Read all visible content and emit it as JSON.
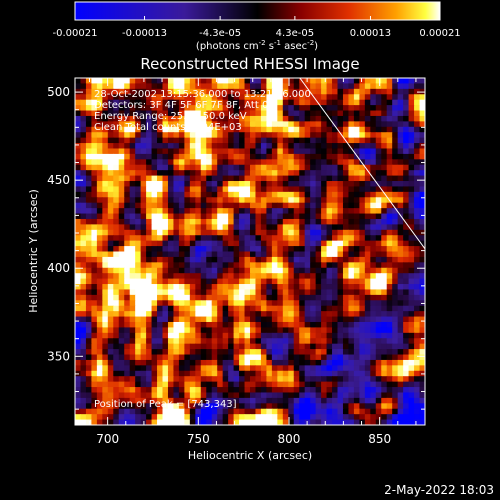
{
  "chart_data": {
    "type": "heatmap",
    "title": "Reconstructed RHESSI Image",
    "xlabel": "Heliocentric X (arcsec)",
    "ylabel": "Heliocentric Y (arcsec)",
    "xlim": [
      682,
      875
    ],
    "ylim": [
      311,
      508
    ],
    "xticks": [
      700,
      750,
      800,
      850
    ],
    "yticks": [
      350,
      400,
      450,
      500
    ],
    "colorbar": {
      "range": [
        -0.00021,
        0.00021
      ],
      "tick_labels": [
        "-0.00021",
        "-0.00013",
        "-4.3e-05",
        "4.3e-05",
        "0.00013",
        "0.00021"
      ],
      "tick_values": [
        -0.00021,
        -0.00013,
        -4.3e-05,
        4.3e-05,
        0.00013,
        0.00021
      ],
      "unit_main": "(photons cm",
      "unit_exp1": "-2",
      "unit_mid": " s",
      "unit_exp2": "-1",
      "unit_mid2": " asec",
      "unit_exp3": "-2",
      "unit_end": ")"
    },
    "annotations": [
      "28-Oct-2002 13:15:36.000 to 13:21:36.000",
      "Detectors: 3F 4F 5F 6F 7F 8F, Att 0",
      "Energy Range: 25.0 - 50.0 keV",
      "Clean     Total counts: 4.94E+03"
    ],
    "peak_label": "Position of Peak = [743,343]",
    "peak": [
      743,
      343
    ],
    "limb_line": [
      [
        806,
        508
      ],
      [
        875,
        411
      ]
    ],
    "colors": {
      "low": "#0000ff",
      "zero": "#000000",
      "mid": "#c00000",
      "high": "#ffff00",
      "max": "#ffffff"
    }
  },
  "footer": {
    "date": "2-May-2022 18:03"
  }
}
